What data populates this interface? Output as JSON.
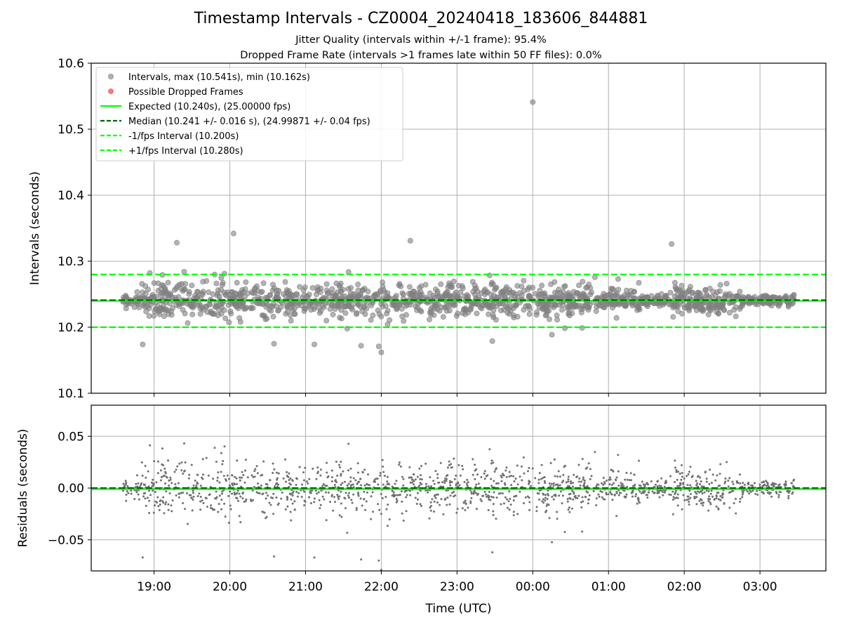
{
  "title": "Timestamp Intervals - CZ0004_20240418_183606_844881",
  "subtitles": [
    "Jitter Quality (intervals within +/-1 frame): 95.4%",
    "Dropped Frame Rate (intervals >1 frames late within 50 FF files): 0.0%"
  ],
  "colors": {
    "points": "#808080",
    "dropped": "#ff5555",
    "expected": "#00ff00",
    "median": "#006400",
    "fps_interval": "#00ff00",
    "grid": "#b0b0b0"
  },
  "chart_data": [
    {
      "type": "scatter",
      "panel": "intervals",
      "ylabel": "Intervals (seconds)",
      "xlabel": "",
      "ylim": [
        10.1,
        10.6
      ],
      "yticks": [
        "10.1",
        "10.2",
        "10.3",
        "10.4",
        "10.5",
        "10.6"
      ],
      "grid": true,
      "legend_position": "upper-left",
      "x_range_hours": [
        18.59,
        27.45
      ],
      "legend": [
        {
          "label": "Intervals, max (10.541s), min (10.162s)",
          "kind": "point",
          "color": "#808080"
        },
        {
          "label": "Possible Dropped Frames",
          "kind": "point",
          "color": "#ff5555"
        },
        {
          "label": "Expected (10.240s), (25.00000 fps)",
          "kind": "line",
          "color": "#00ff00"
        },
        {
          "label": "Median (10.241 +/- 0.016 s), (24.99871 +/- 0.04 fps)",
          "kind": "dash",
          "color": "#006400"
        },
        {
          "label": "-1/fps Interval (10.200s)",
          "kind": "dash",
          "color": "#00ff00"
        },
        {
          "label": "+1/fps Interval (10.280s)",
          "kind": "dash",
          "color": "#00ff00"
        }
      ],
      "reference_lines": [
        {
          "name": "expected",
          "y": 10.24,
          "style": "solid"
        },
        {
          "name": "median",
          "y": 10.241,
          "style": "dashed"
        },
        {
          "name": "minus_fps",
          "y": 10.2,
          "style": "dashed"
        },
        {
          "name": "plus_fps",
          "y": 10.28,
          "style": "dashed"
        }
      ],
      "series_note": "approx. 3100 interval samples spanning 18:35 to 03:27 UTC",
      "outliers": [
        {
          "x": "00:00",
          "y": 10.541
        },
        {
          "x": "20:03",
          "y": 10.342
        },
        {
          "x": "19:18",
          "y": 10.328
        },
        {
          "x": "01:50",
          "y": 10.326
        },
        {
          "x": "22:23",
          "y": 10.331
        },
        {
          "x": "22:00",
          "y": 10.162
        },
        {
          "x": "21:58",
          "y": 10.171
        },
        {
          "x": "21:44",
          "y": 10.172
        },
        {
          "x": "18:51",
          "y": 10.174
        },
        {
          "x": "21:07",
          "y": 10.174
        },
        {
          "x": "23:28",
          "y": 10.179
        },
        {
          "x": "20:35",
          "y": 10.175
        }
      ],
      "density_profile": [
        {
          "from": "18:35",
          "to": "18:50",
          "spread": 0.008
        },
        {
          "from": "18:50",
          "to": "00:50",
          "spread": 0.024
        },
        {
          "from": "00:50",
          "to": "01:25",
          "spread": 0.018
        },
        {
          "from": "01:25",
          "to": "01:45",
          "spread": 0.008
        },
        {
          "from": "01:45",
          "to": "02:45",
          "spread": 0.018
        },
        {
          "from": "02:45",
          "to": "03:27",
          "spread": 0.007
        }
      ]
    },
    {
      "type": "scatter",
      "panel": "residuals",
      "ylabel": "Residuals (seconds)",
      "xlabel": "Time (UTC)",
      "ylim": [
        -0.08,
        0.08
      ],
      "yticks": [
        "−0.05",
        "0.00",
        "0.05"
      ],
      "xticks": [
        "19:00",
        "20:00",
        "21:00",
        "22:00",
        "23:00",
        "00:00",
        "01:00",
        "02:00",
        "03:00"
      ],
      "grid": true,
      "reference_lines": [
        {
          "name": "expected",
          "y": -0.001,
          "style": "solid"
        },
        {
          "name": "median",
          "y": 0.0,
          "style": "dashed"
        }
      ]
    }
  ]
}
